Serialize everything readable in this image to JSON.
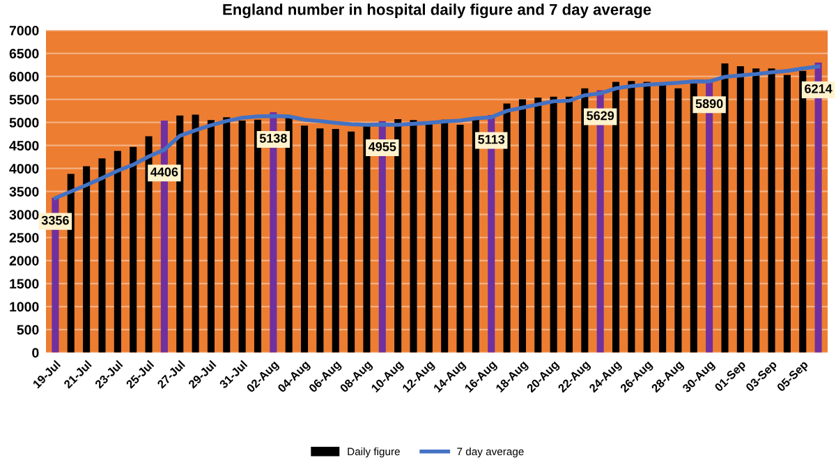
{
  "chart_data": {
    "type": "bar",
    "title": "England number in hospital daily figure and 7 day average",
    "categories": [
      "19-Jul",
      null,
      "21-Jul",
      null,
      "23-Jul",
      null,
      "25-Jul",
      null,
      "27-Jul",
      null,
      "29-Jul",
      null,
      "31-Jul",
      null,
      "02-Aug",
      null,
      "04-Aug",
      null,
      "06-Aug",
      null,
      "08-Aug",
      null,
      "10-Aug",
      null,
      "12-Aug",
      null,
      "14-Aug",
      null,
      "16-Aug",
      null,
      "18-Aug",
      null,
      "20-Aug",
      null,
      "22-Aug",
      null,
      "24-Aug",
      null,
      "26-Aug",
      null,
      "28-Aug",
      null,
      "30-Aug",
      null,
      "01-Sep",
      null,
      "03-Sep",
      null,
      "05-Sep",
      null
    ],
    "series": [
      {
        "name": "Daily figure",
        "color": "#000000",
        "colors": [
          "#7030a0",
          "#000000",
          "#000000",
          "#000000",
          "#000000",
          "#000000",
          "#000000",
          "#7030a0",
          "#000000",
          "#000000",
          "#000000",
          "#000000",
          "#000000",
          "#000000",
          "#7030a0",
          "#000000",
          "#000000",
          "#000000",
          "#000000",
          "#000000",
          "#000000",
          "#7030a0",
          "#000000",
          "#000000",
          "#000000",
          "#000000",
          "#000000",
          "#000000",
          "#7030a0",
          "#000000",
          "#000000",
          "#000000",
          "#000000",
          "#000000",
          "#000000",
          "#7030a0",
          "#000000",
          "#000000",
          "#000000",
          "#000000",
          "#000000",
          "#000000",
          "#7030a0",
          "#000000",
          "#000000",
          "#000000",
          "#000000",
          "#000000",
          "#000000",
          "#7030a0"
        ],
        "values": [
          3360,
          3880,
          4050,
          4220,
          4380,
          4470,
          4700,
          5040,
          5150,
          5170,
          5050,
          5110,
          5040,
          5060,
          5220,
          5100,
          4930,
          4870,
          4860,
          4800,
          4930,
          5030,
          5070,
          5050,
          5020,
          5060,
          4950,
          5100,
          5160,
          5410,
          5500,
          5540,
          5560,
          5560,
          5740,
          5700,
          5880,
          5900,
          5880,
          5870,
          5740,
          5850,
          5920,
          6280,
          6220,
          6170,
          6170,
          6030,
          6120,
          6300
        ]
      },
      {
        "name": "7 day average",
        "type": "line",
        "color": "#4472c4",
        "values": [
          3356,
          3500,
          3640,
          3790,
          3950,
          4080,
          4260,
          4406,
          4710,
          4830,
          4940,
          5030,
          5100,
          5130,
          5138,
          5130,
          5060,
          5030,
          4990,
          4960,
          4950,
          4955,
          4950,
          4970,
          4990,
          5020,
          5040,
          5090,
          5113,
          5250,
          5320,
          5390,
          5460,
          5470,
          5590,
          5629,
          5740,
          5790,
          5820,
          5840,
          5860,
          5890,
          5890,
          5990,
          6020,
          6050,
          6090,
          6120,
          6170,
          6214
        ],
        "value_labels": [
          "3356",
          null,
          null,
          null,
          null,
          null,
          null,
          "4406",
          null,
          null,
          null,
          null,
          null,
          null,
          "5138",
          null,
          null,
          null,
          null,
          null,
          null,
          "4955",
          null,
          null,
          null,
          null,
          null,
          null,
          "5113",
          null,
          null,
          null,
          null,
          null,
          null,
          "5629",
          null,
          null,
          null,
          null,
          null,
          null,
          "5890",
          null,
          null,
          null,
          null,
          null,
          null,
          "6214"
        ]
      }
    ],
    "ylim": [
      0,
      7000
    ],
    "yticks": [
      0,
      500,
      1000,
      1500,
      2000,
      2500,
      3000,
      3500,
      4000,
      4500,
      5000,
      5500,
      6000,
      6500,
      7000
    ],
    "grid": "y",
    "legend": "bottom",
    "marker": "none",
    "line_style": "solid"
  }
}
